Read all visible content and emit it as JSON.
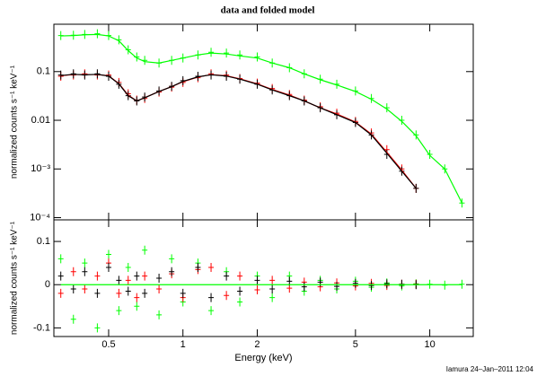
{
  "chart_data": [
    {
      "type": "scatter",
      "title": "data and folded model",
      "ylabel": "normalized counts s⁻¹ keV⁻¹",
      "xlog": true,
      "ylog": true,
      "xlim": [
        0.3,
        15
      ],
      "ylim": [
        9e-05,
        0.94
      ],
      "yticks": [
        {
          "value": 0.0001,
          "label": "10⁻⁴"
        },
        {
          "value": 0.001,
          "label": "10⁻³"
        },
        0.01,
        0.1
      ],
      "x": [
        0.32,
        0.36,
        0.4,
        0.45,
        0.5,
        0.55,
        0.6,
        0.65,
        0.7,
        0.8,
        0.9,
        1.0,
        1.15,
        1.3,
        1.5,
        1.7,
        2.0,
        2.3,
        2.7,
        3.1,
        3.6,
        4.2,
        5.0,
        5.8,
        6.7,
        7.7,
        8.8,
        10,
        11.5,
        13.5
      ],
      "series": [
        {
          "color": "#00ff00",
          "mode": "points",
          "values": [
            0.55,
            0.56,
            0.58,
            0.6,
            0.55,
            0.45,
            0.28,
            0.2,
            0.17,
            0.15,
            0.17,
            0.19,
            0.22,
            0.25,
            0.24,
            0.22,
            0.2,
            0.15,
            0.12,
            0.09,
            0.07,
            0.055,
            0.04,
            0.028,
            0.018,
            0.01,
            0.005,
            0.002,
            0.001,
            0.0002
          ]
        },
        {
          "color": "#00ff00",
          "mode": "line",
          "values": [
            0.54,
            0.55,
            0.57,
            0.58,
            0.54,
            0.43,
            0.27,
            0.19,
            0.16,
            0.15,
            0.17,
            0.19,
            0.22,
            0.24,
            0.23,
            0.21,
            0.19,
            0.15,
            0.12,
            0.09,
            0.068,
            0.053,
            0.039,
            0.027,
            0.017,
            0.0095,
            0.0048,
            0.0019,
            0.001,
            0.0002
          ]
        },
        {
          "color": "#ff0000",
          "mode": "points",
          "values": [
            0.08,
            0.085,
            0.09,
            0.085,
            0.085,
            0.06,
            0.035,
            0.026,
            0.028,
            0.038,
            0.048,
            0.06,
            0.075,
            0.09,
            0.085,
            0.072,
            0.058,
            0.045,
            0.034,
            0.026,
            0.019,
            0.014,
            0.0095,
            0.0055,
            0.0025,
            0.001,
            0.0004,
            null,
            null,
            null
          ]
        },
        {
          "color": "#000000",
          "mode": "points",
          "values": [
            0.085,
            0.09,
            0.085,
            0.09,
            0.08,
            0.055,
            0.032,
            0.025,
            0.03,
            0.04,
            0.05,
            0.065,
            0.08,
            0.085,
            0.08,
            0.07,
            0.055,
            0.042,
            0.032,
            0.025,
            0.018,
            0.013,
            0.009,
            0.005,
            0.002,
            0.0009,
            0.0004,
            null,
            null,
            null
          ]
        },
        {
          "color": "#ff0000",
          "mode": "line",
          "values": [
            0.082,
            0.087,
            0.087,
            0.087,
            0.082,
            0.057,
            0.033,
            0.025,
            0.029,
            0.039,
            0.049,
            0.062,
            0.077,
            0.087,
            0.082,
            0.071,
            0.056,
            0.043,
            0.033,
            0.025,
            0.018,
            0.0135,
            0.0092,
            0.0052,
            0.0022,
            0.00095,
            0.0004,
            null,
            null,
            null
          ]
        },
        {
          "color": "#000000",
          "mode": "line",
          "values": [
            0.083,
            0.088,
            0.086,
            0.088,
            0.081,
            0.056,
            0.032,
            0.025,
            0.029,
            0.039,
            0.049,
            0.063,
            0.078,
            0.086,
            0.081,
            0.07,
            0.055,
            0.042,
            0.032,
            0.025,
            0.018,
            0.013,
            0.009,
            0.005,
            0.0021,
            0.0009,
            0.0004,
            null,
            null,
            null
          ]
        }
      ]
    },
    {
      "type": "scatter",
      "ylabel": "normalized counts s⁻¹ keV⁻¹",
      "xlabel": "Energy (keV)",
      "xlog": true,
      "ylog": false,
      "xlim": [
        0.3,
        15
      ],
      "ylim": [
        -0.12,
        0.15
      ],
      "xticks": [
        0.5,
        1,
        2,
        5,
        10
      ],
      "yticks": [
        -0.1,
        0,
        0.1
      ],
      "x": [
        0.32,
        0.36,
        0.4,
        0.45,
        0.5,
        0.55,
        0.6,
        0.65,
        0.7,
        0.8,
        0.9,
        1.0,
        1.15,
        1.3,
        1.5,
        1.7,
        2.0,
        2.3,
        2.7,
        3.1,
        3.6,
        4.2,
        5.0,
        5.8,
        6.7,
        7.7,
        8.8,
        10,
        11.5,
        13.5
      ],
      "series": [
        {
          "color": "#00ff00",
          "mode": "points",
          "values": [
            0.06,
            -0.08,
            0.05,
            -0.1,
            0.07,
            -0.06,
            0.04,
            -0.05,
            0.08,
            -0.07,
            0.06,
            -0.04,
            0.05,
            -0.06,
            0.03,
            -0.04,
            0.02,
            -0.03,
            0.02,
            -0.015,
            0.01,
            -0.01,
            0.008,
            -0.006,
            0.004,
            -0.003,
            0.002,
            0.001,
            -0.001,
            0.001
          ]
        },
        {
          "color": "#ff0000",
          "mode": "points",
          "values": [
            -0.02,
            0.03,
            -0.01,
            0.02,
            0.05,
            -0.02,
            0.01,
            -0.03,
            0.02,
            -0.01,
            0.025,
            -0.03,
            0.035,
            0.04,
            -0.025,
            0.02,
            -0.012,
            0.01,
            -0.008,
            0.006,
            -0.005,
            0.004,
            -0.003,
            0.003,
            -0.002,
            0.001,
            0.001,
            null,
            null,
            null
          ]
        },
        {
          "color": "#000000",
          "mode": "points",
          "values": [
            0.02,
            -0.01,
            0.03,
            -0.02,
            0.04,
            0.01,
            -0.015,
            0.02,
            -0.02,
            0.015,
            0.03,
            -0.02,
            0.04,
            -0.03,
            0.02,
            -0.015,
            0.01,
            -0.01,
            0.008,
            -0.005,
            0.006,
            -0.004,
            0.003,
            -0.002,
            0.002,
            0.001,
            0,
            null,
            null,
            null
          ]
        },
        {
          "color": "#00ff00",
          "mode": "line",
          "values": [
            0,
            0,
            0,
            0,
            0,
            0,
            0,
            0,
            0,
            0,
            0,
            0,
            0,
            0,
            0,
            0,
            0,
            0,
            0,
            0,
            0,
            0,
            0,
            0,
            0,
            0,
            0,
            0,
            0,
            0
          ]
        }
      ]
    }
  ],
  "footer": "Iamura 24–Jan–2011 12:04"
}
